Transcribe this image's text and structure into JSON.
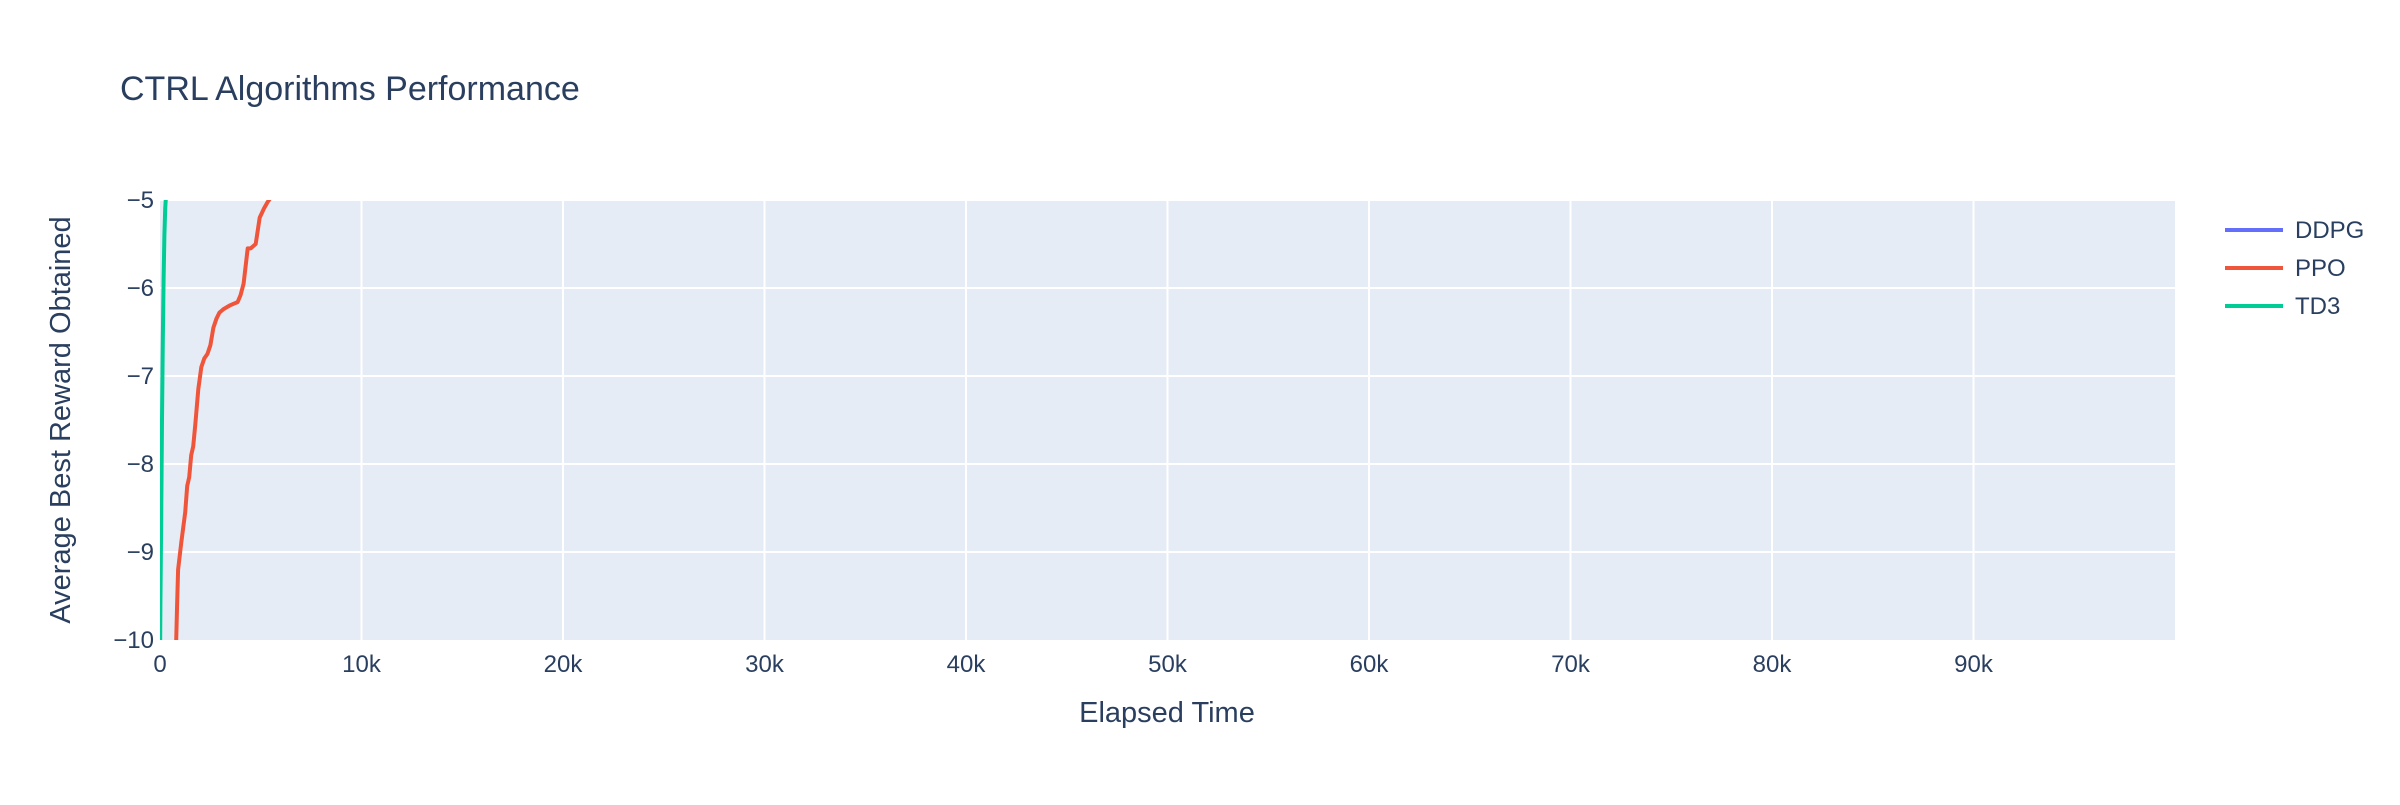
{
  "chart_data": {
    "type": "line",
    "title": "CTRL Algorithms Performance",
    "xlabel": "Elapsed Time",
    "ylabel": "Average Best Reward Obtained",
    "xlim": [
      0,
      100000
    ],
    "ylim": [
      -10,
      -5
    ],
    "x_ticks": [
      0,
      10000,
      20000,
      30000,
      40000,
      50000,
      60000,
      70000,
      80000,
      90000
    ],
    "x_tick_labels": [
      "0",
      "10k",
      "20k",
      "30k",
      "40k",
      "50k",
      "60k",
      "70k",
      "80k",
      "90k"
    ],
    "y_ticks": [
      -10,
      -9,
      -8,
      -7,
      -6,
      -5
    ],
    "y_tick_labels": [
      "−10",
      "−9",
      "−8",
      "−7",
      "−6",
      "−5"
    ],
    "grid": true,
    "legend_position": "top-right",
    "plot_bgcolor": "#e5ecf6",
    "series": [
      {
        "name": "DDPG",
        "color": "#636efa",
        "x": [],
        "y": []
      },
      {
        "name": "PPO",
        "color": "#ef553b",
        "x": [
          800,
          850,
          900,
          1050,
          1250,
          1350,
          1450,
          1550,
          1650,
          1750,
          1900,
          2050,
          2200,
          2350,
          2500,
          2650,
          2800,
          2950,
          3100,
          3150,
          3300,
          3450,
          3650,
          3850,
          4000,
          4150,
          4350,
          4500,
          4750,
          4950,
          5150,
          5350,
          5500,
          5600
        ],
        "y": [
          -10.05,
          -9.6,
          -9.2,
          -8.9,
          -8.55,
          -8.25,
          -8.15,
          -7.9,
          -7.8,
          -7.55,
          -7.15,
          -6.9,
          -6.8,
          -6.75,
          -6.65,
          -6.45,
          -6.35,
          -6.28,
          -6.25,
          -6.24,
          -6.22,
          -6.2,
          -6.18,
          -6.16,
          -6.08,
          -5.95,
          -5.55,
          -5.55,
          -5.5,
          -5.2,
          -5.1,
          -5.02,
          -4.97,
          -4.95
        ]
      },
      {
        "name": "TD3",
        "color": "#00cc96",
        "x": [
          0,
          20,
          60,
          100,
          140,
          180,
          220,
          260,
          300,
          340
        ],
        "y": [
          -10.3,
          -9.6,
          -8.6,
          -7.5,
          -6.6,
          -5.9,
          -5.4,
          -5.1,
          -4.95,
          -4.8
        ]
      }
    ]
  }
}
